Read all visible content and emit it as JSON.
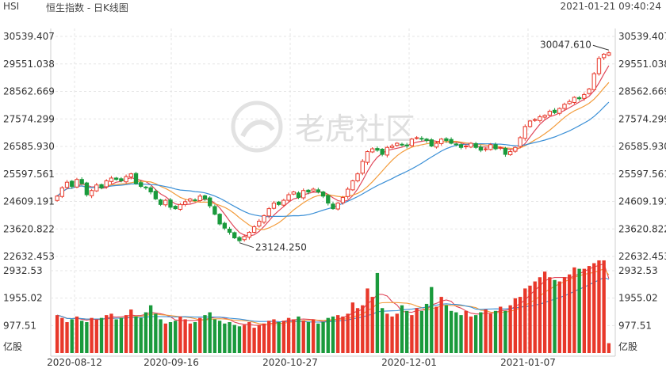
{
  "header": {
    "symbol": "HSI",
    "title": "恒生指数 - 日K线图",
    "timestamp": "2021-01-21 09:40:24"
  },
  "watermark": {
    "text": "老虎社区",
    "logo": "tiger-logo"
  },
  "colors": {
    "up": "#e8382a",
    "down": "#1a9a3c",
    "ma5": "#e0475a",
    "ma10": "#f39b3a",
    "ma20": "#3a8fd6",
    "grid": "#e6e6e6",
    "axis_text": "#333333"
  },
  "chart_data": [
    {
      "type": "candlestick",
      "title": "",
      "ylim": [
        22632.453,
        30539.407
      ],
      "y_ticks": [
        "30539.407",
        "29551.038",
        "28562.669",
        "27574.299",
        "26585.930",
        "25597.561",
        "24609.191",
        "23620.822",
        "22632.453"
      ],
      "x_ticks": [
        "2020-08-12",
        "2020-09-16",
        "2020-10-27",
        "2020-12-01",
        "2021-01-07"
      ],
      "annotations": [
        {
          "text": "30047.610",
          "value": 30047.61,
          "label": "high"
        },
        {
          "text": "23124.250",
          "value": 23124.25,
          "label": "low"
        }
      ],
      "grid": true,
      "closes": [
        24800,
        25100,
        25300,
        25150,
        25400,
        25250,
        24850,
        25000,
        25200,
        25100,
        25350,
        25450,
        25400,
        25350,
        25500,
        25600,
        25250,
        25150,
        25100,
        24950,
        24700,
        24500,
        24650,
        24400,
        24350,
        24500,
        24600,
        24700,
        24650,
        24800,
        24700,
        24450,
        24150,
        23800,
        23650,
        23500,
        23300,
        23200,
        23350,
        23500,
        23700,
        23900,
        24100,
        24350,
        24550,
        24500,
        24650,
        24850,
        24950,
        24750,
        25000,
        24950,
        25050,
        24950,
        24800,
        24550,
        24350,
        24550,
        24750,
        25050,
        25350,
        25600,
        26050,
        26400,
        26500,
        26450,
        26300,
        26550,
        26600,
        26700,
        26650,
        26600,
        26850,
        26900,
        26850,
        26800,
        26600,
        26700,
        26850,
        26800,
        26700,
        26650,
        26550,
        26600,
        26700,
        26550,
        26450,
        26500,
        26650,
        26500,
        26550,
        26300,
        26400,
        26550,
        26900,
        27300,
        27500,
        27550,
        27650,
        27700,
        27850,
        27800,
        27950,
        28100,
        28200,
        28350,
        28300,
        28450,
        28650,
        29200,
        29750,
        29900,
        29950
      ]
    },
    {
      "type": "bar",
      "title": "",
      "ylabel": "亿股",
      "ylim": [
        0,
        2932.53
      ],
      "y_ticks": [
        "2932.53",
        "1955.02",
        "977.51"
      ],
      "unit": "亿股",
      "volumes": [
        1350,
        1250,
        1100,
        1200,
        1300,
        1150,
        1100,
        1250,
        1200,
        1250,
        1350,
        1400,
        1200,
        1250,
        1350,
        1550,
        1300,
        1250,
        1450,
        1700,
        1400,
        1200,
        1050,
        1100,
        1150,
        1300,
        1200,
        1050,
        1100,
        1250,
        1350,
        1450,
        1200,
        1150,
        1050,
        1100,
        1000,
        950,
        1000,
        1100,
        900,
        1000,
        1050,
        1150,
        1200,
        1100,
        1150,
        1250,
        1200,
        1300,
        1150,
        1100,
        1200,
        1050,
        1100,
        1250,
        1300,
        1350,
        1300,
        1400,
        1800,
        1600,
        1700,
        2300,
        2000,
        2850,
        1600,
        1400,
        1300,
        1400,
        1700,
        1500,
        1350,
        1600,
        1500,
        1750,
        2350,
        1650,
        2000,
        1700,
        1500,
        1450,
        1350,
        1500,
        1300,
        1350,
        1450,
        1550,
        1400,
        1500,
        1650,
        1500,
        1700,
        1950,
        2000,
        2300,
        2400,
        2550,
        2700,
        2900,
        2700,
        2600,
        2550,
        2700,
        2800,
        3050,
        3000,
        3000,
        3100,
        3200,
        3300,
        3300,
        350
      ]
    }
  ]
}
